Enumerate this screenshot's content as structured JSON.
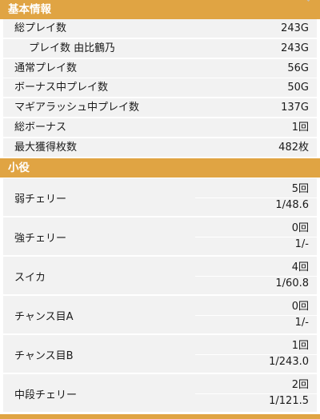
{
  "basic": {
    "header": "基本情報",
    "rows": [
      {
        "label": "総プレイ数",
        "value": "243G"
      },
      {
        "label": "プレイ数 由比鶴乃",
        "value": "243G"
      },
      {
        "label": "通常プレイ数",
        "value": "56G"
      },
      {
        "label": "ボーナス中プレイ数",
        "value": "50G"
      },
      {
        "label": "マギアラッシュ中プレイ数",
        "value": "137G"
      },
      {
        "label": "総ボーナス",
        "value": "1回"
      },
      {
        "label": "最大獲得枚数",
        "value": "482枚"
      }
    ]
  },
  "koyaku": {
    "header": "小役",
    "items": [
      {
        "name": "弱チェリー",
        "count": "5回",
        "prob": "1/48.6"
      },
      {
        "name": "強チェリー",
        "count": "0回",
        "prob": "1/-"
      },
      {
        "name": "スイカ",
        "count": "4回",
        "prob": "1/60.8"
      },
      {
        "name": "チャンス目A",
        "count": "0回",
        "prob": "1/-"
      },
      {
        "name": "チャンス目B",
        "count": "1回",
        "prob": "1/243.0"
      },
      {
        "name": "中段チェリー",
        "count": "2回",
        "prob": "1/121.5"
      }
    ]
  },
  "colors": {
    "accent": "#e0a443",
    "row_bg": "#f2f2f2"
  }
}
